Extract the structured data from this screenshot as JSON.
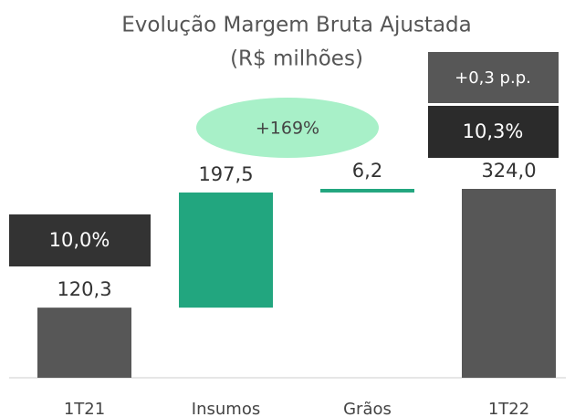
{
  "chart_data": {
    "type": "waterfall",
    "title": "Evolução Margem Bruta Ajustada",
    "subtitle": "(R$ milhões)",
    "categories": [
      "1T21",
      "Insumos",
      "Grãos",
      "1T22"
    ],
    "values": [
      120.3,
      197.5,
      6.2,
      324.0
    ],
    "value_labels": [
      "120,3",
      "197,5",
      "6,2",
      "324,0"
    ],
    "colors": [
      "#575757",
      "#22a67f",
      "#22a67f",
      "#575757"
    ],
    "annotations": {
      "margin_start": "10,0%",
      "margin_end": "10,3%",
      "margin_change": "+0,3 p.p.",
      "growth": "+169%"
    }
  }
}
